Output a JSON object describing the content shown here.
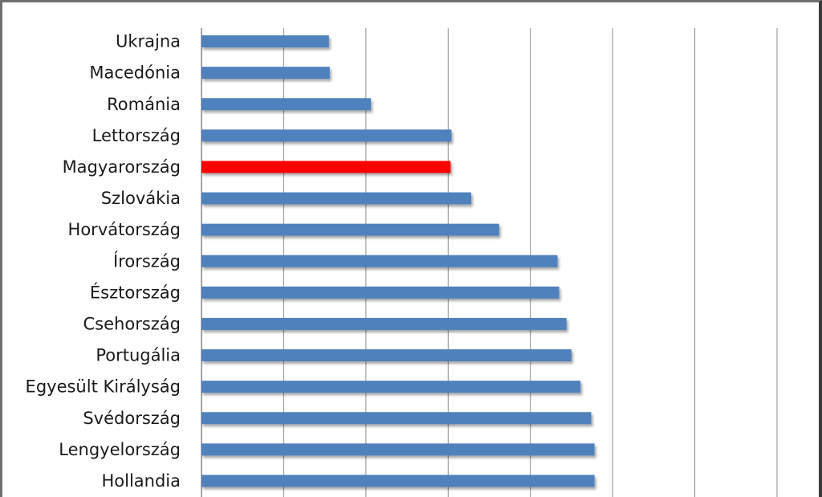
{
  "chart_data": {
    "type": "bar",
    "orientation": "horizontal",
    "categories": [
      "Ukrajna",
      "Macedónia",
      "Románia",
      "Lettország",
      "Magyarország",
      "Szlovákia",
      "Horvátország",
      "Írország",
      "Észtország",
      "Csehország",
      "Portugália",
      "Egyesült Királyság",
      "Svédország",
      "Lengyelország",
      "Hollandia"
    ],
    "values": [
      15.5,
      15.6,
      20.6,
      30.4,
      30.3,
      32.8,
      36.2,
      43.3,
      43.5,
      44.4,
      45.0,
      46.1,
      47.4,
      47.8,
      47.8
    ],
    "xlim": [
      0,
      70
    ],
    "grid": true,
    "legend": "none",
    "bar_color": "#4F81BD",
    "highlight": {
      "category": "Magyarország",
      "color": "#FF0000"
    }
  }
}
